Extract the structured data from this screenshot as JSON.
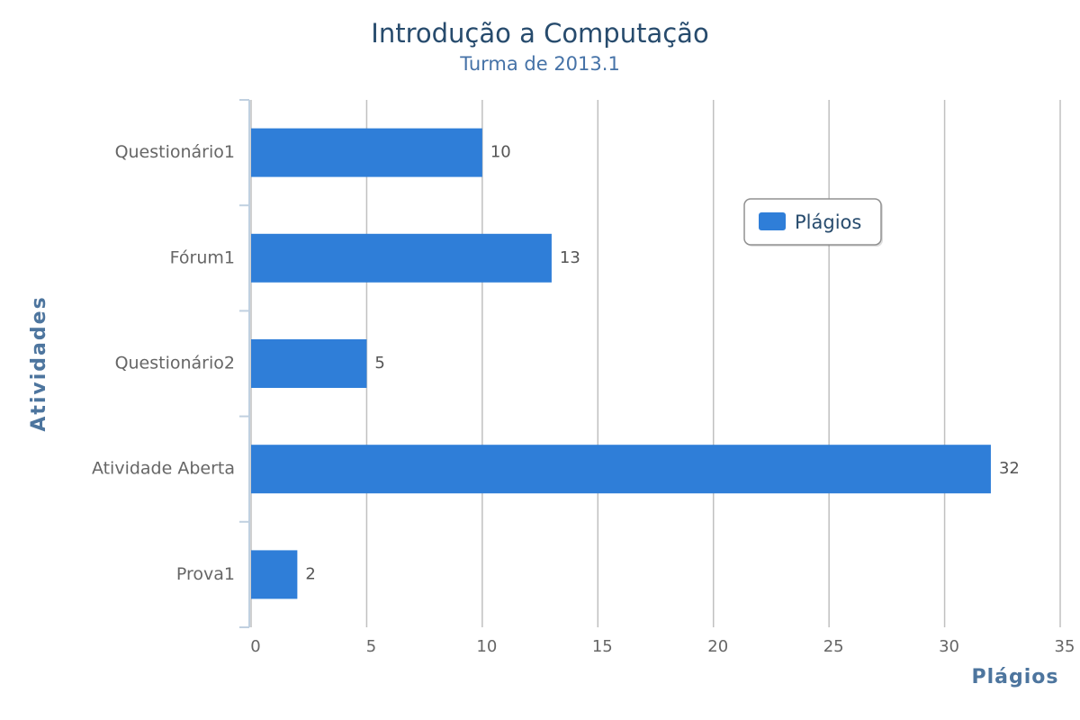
{
  "chart_data": {
    "type": "bar",
    "orientation": "horizontal",
    "title": "Introdução a Computação",
    "subtitle": "Turma de 2013.1",
    "x_label": "Plágios",
    "y_label": "Atividades",
    "categories": [
      "Questionário1",
      "Fórum1",
      "Questionário2",
      "Atividade Aberta",
      "Prova1"
    ],
    "series": [
      {
        "name": "Plágios",
        "color": "#2f7ed8",
        "values": [
          10,
          13,
          5,
          32,
          2
        ]
      }
    ],
    "xlim": [
      0,
      35
    ],
    "xticks": [
      0,
      5,
      10,
      15,
      20,
      25,
      30,
      35
    ],
    "grid": true,
    "legend_position": "top-right",
    "data_labels": true
  }
}
